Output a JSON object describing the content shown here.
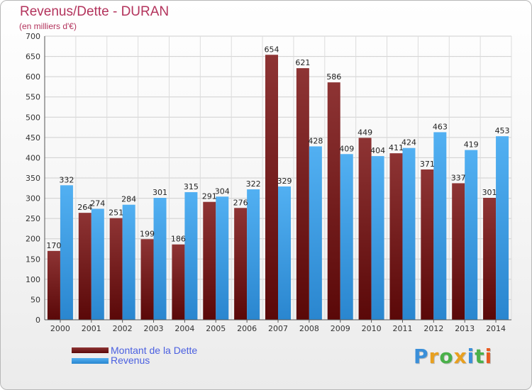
{
  "title": "Revenus/Dette - DURAN",
  "subtitle": "(en milliers d'€)",
  "legend": [
    {
      "label": "Montant de la Dette",
      "color": "#7a1a1a"
    },
    {
      "label": "Revenus",
      "color": "#3d9ee5"
    }
  ],
  "logo": {
    "letters": [
      "P",
      "r",
      "o",
      "x",
      "i",
      "t",
      "i"
    ],
    "colors": [
      "#3a8fd9",
      "#e8a020",
      "#4ab04a",
      "#e8a020",
      "#3a8fd9",
      "#4ab04a",
      "#e85a20"
    ]
  },
  "chart_data": {
    "type": "bar",
    "title": "Revenus/Dette - DURAN",
    "subtitle": "(en milliers d'€)",
    "categories": [
      "2000",
      "2001",
      "2002",
      "2003",
      "2004",
      "2005",
      "2006",
      "2007",
      "2008",
      "2009",
      "2010",
      "2011",
      "2012",
      "2013",
      "2014"
    ],
    "series": [
      {
        "name": "Montant de la Dette",
        "values": [
          170,
          264,
          251,
          199,
          186,
          291,
          276,
          654,
          621,
          586,
          449,
          411,
          371,
          337,
          301
        ],
        "labels": [
          "170",
          "264",
          "251",
          "199",
          "186",
          "291",
          "276",
          "654",
          "621",
          "586",
          "449",
          "411",
          "371",
          "337",
          "301"
        ],
        "color": "#7a1a1a"
      },
      {
        "name": "Revenus",
        "values": [
          332,
          274,
          284,
          301,
          315,
          304,
          322,
          329,
          428,
          409,
          404,
          424,
          463,
          419,
          453
        ],
        "labels": [
          "332",
          "274",
          "284",
          "301",
          "315",
          "304",
          "322",
          "329",
          "428",
          "409",
          "404",
          "424",
          "463",
          "419",
          "453"
        ],
        "color": "#3d9ee5"
      }
    ],
    "yticks": [
      "0",
      "50",
      "100",
      "150",
      "200",
      "250",
      "300",
      "350",
      "400",
      "450",
      "500",
      "550",
      "600",
      "650",
      "700"
    ],
    "ylim": [
      0,
      700
    ],
    "grid": true,
    "legend_position": "bottom-left"
  }
}
